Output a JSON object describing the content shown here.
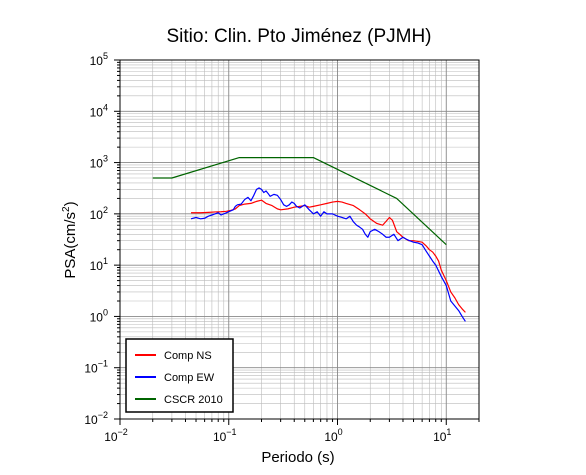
{
  "chart_data": {
    "type": "line",
    "title": "Sitio: Clin. Pto Jiménez (PJMH)",
    "xlabel": "Periodo (s)",
    "ylabel_prefix": "PSA(cm/s",
    "ylabel_sup": "2",
    "ylabel_suffix": ")",
    "x_scale": "log",
    "y_scale": "log",
    "xlim": [
      0.01,
      20
    ],
    "ylim": [
      0.01,
      100000
    ],
    "grid": true,
    "legend_position": "bottom-left",
    "x_ticks": [
      {
        "value": 0.01,
        "base": "10",
        "exp": "−2"
      },
      {
        "value": 0.1,
        "base": "10",
        "exp": "−1"
      },
      {
        "value": 1,
        "base": "10",
        "exp": "0"
      },
      {
        "value": 10,
        "base": "10",
        "exp": "1"
      }
    ],
    "y_ticks": [
      {
        "value": 0.01,
        "base": "10",
        "exp": "−2"
      },
      {
        "value": 0.1,
        "base": "10",
        "exp": "−1"
      },
      {
        "value": 1,
        "base": "10",
        "exp": "0"
      },
      {
        "value": 10,
        "base": "10",
        "exp": "1"
      },
      {
        "value": 100,
        "base": "10",
        "exp": "2"
      },
      {
        "value": 1000,
        "base": "10",
        "exp": "3"
      },
      {
        "value": 10000,
        "base": "10",
        "exp": "4"
      },
      {
        "value": 100000,
        "base": "10",
        "exp": "5"
      }
    ],
    "series": [
      {
        "name": "Comp NS",
        "color": "#ff0000",
        "points": [
          [
            0.045,
            105
          ],
          [
            0.055,
            105
          ],
          [
            0.065,
            107
          ],
          [
            0.075,
            109
          ],
          [
            0.085,
            110
          ],
          [
            0.095,
            112
          ],
          [
            0.105,
            117
          ],
          [
            0.115,
            125
          ],
          [
            0.125,
            145
          ],
          [
            0.14,
            155
          ],
          [
            0.16,
            160
          ],
          [
            0.18,
            175
          ],
          [
            0.2,
            185
          ],
          [
            0.22,
            160
          ],
          [
            0.25,
            145
          ],
          [
            0.28,
            125
          ],
          [
            0.3,
            120
          ],
          [
            0.35,
            125
          ],
          [
            0.4,
            135
          ],
          [
            0.45,
            140
          ],
          [
            0.5,
            145
          ],
          [
            0.55,
            135
          ],
          [
            0.6,
            140
          ],
          [
            0.7,
            150
          ],
          [
            0.8,
            160
          ],
          [
            0.9,
            170
          ],
          [
            1.0,
            175
          ],
          [
            1.1,
            170
          ],
          [
            1.2,
            160
          ],
          [
            1.4,
            145
          ],
          [
            1.6,
            120
          ],
          [
            1.8,
            100
          ],
          [
            2.0,
            80
          ],
          [
            2.3,
            65
          ],
          [
            2.6,
            60
          ],
          [
            3.0,
            85
          ],
          [
            3.2,
            75
          ],
          [
            3.5,
            45
          ],
          [
            4.0,
            35
          ],
          [
            4.5,
            30
          ],
          [
            5.0,
            30
          ],
          [
            5.5,
            29
          ],
          [
            6.0,
            28
          ],
          [
            6.5,
            24
          ],
          [
            7.0,
            20
          ],
          [
            7.5,
            18
          ],
          [
            8.0,
            15
          ],
          [
            8.5,
            12
          ],
          [
            9.0,
            8
          ],
          [
            10,
            5
          ],
          [
            11,
            3
          ],
          [
            12,
            2.3
          ],
          [
            13,
            1.7
          ],
          [
            14,
            1.4
          ],
          [
            15,
            1.2
          ]
        ]
      },
      {
        "name": "Comp EW",
        "color": "#0000ff",
        "points": [
          [
            0.045,
            80
          ],
          [
            0.05,
            85
          ],
          [
            0.055,
            80
          ],
          [
            0.06,
            82
          ],
          [
            0.065,
            90
          ],
          [
            0.07,
            95
          ],
          [
            0.075,
            100
          ],
          [
            0.08,
            105
          ],
          [
            0.085,
            95
          ],
          [
            0.09,
            100
          ],
          [
            0.095,
            105
          ],
          [
            0.1,
            110
          ],
          [
            0.11,
            120
          ],
          [
            0.115,
            140
          ],
          [
            0.12,
            150
          ],
          [
            0.13,
            155
          ],
          [
            0.14,
            190
          ],
          [
            0.15,
            210
          ],
          [
            0.16,
            180
          ],
          [
            0.17,
            230
          ],
          [
            0.18,
            300
          ],
          [
            0.19,
            320
          ],
          [
            0.2,
            300
          ],
          [
            0.21,
            260
          ],
          [
            0.22,
            280
          ],
          [
            0.23,
            250
          ],
          [
            0.24,
            220
          ],
          [
            0.26,
            240
          ],
          [
            0.28,
            230
          ],
          [
            0.3,
            190
          ],
          [
            0.32,
            150
          ],
          [
            0.34,
            140
          ],
          [
            0.36,
            150
          ],
          [
            0.38,
            170
          ],
          [
            0.4,
            160
          ],
          [
            0.42,
            140
          ],
          [
            0.45,
            130
          ],
          [
            0.5,
            150
          ],
          [
            0.55,
            120
          ],
          [
            0.6,
            100
          ],
          [
            0.65,
            110
          ],
          [
            0.7,
            90
          ],
          [
            0.75,
            110
          ],
          [
            0.8,
            100
          ],
          [
            0.9,
            100
          ],
          [
            1.0,
            90
          ],
          [
            1.1,
            85
          ],
          [
            1.2,
            80
          ],
          [
            1.3,
            90
          ],
          [
            1.4,
            70
          ],
          [
            1.5,
            60
          ],
          [
            1.6,
            55
          ],
          [
            1.7,
            50
          ],
          [
            1.8,
            40
          ],
          [
            1.9,
            35
          ],
          [
            2.0,
            45
          ],
          [
            2.2,
            50
          ],
          [
            2.4,
            45
          ],
          [
            2.6,
            40
          ],
          [
            2.8,
            35
          ],
          [
            3.0,
            35
          ],
          [
            3.3,
            40
          ],
          [
            3.6,
            30
          ],
          [
            4.0,
            35
          ],
          [
            4.3,
            32
          ],
          [
            4.6,
            30
          ],
          [
            5.0,
            28
          ],
          [
            5.5,
            27
          ],
          [
            6.0,
            25
          ],
          [
            6.5,
            19
          ],
          [
            7.0,
            15
          ],
          [
            7.5,
            12
          ],
          [
            8.0,
            10
          ],
          [
            9.0,
            6
          ],
          [
            10,
            4
          ],
          [
            11,
            2
          ],
          [
            12,
            1.6
          ],
          [
            13,
            1.3
          ],
          [
            14,
            1.0
          ],
          [
            15,
            0.8
          ]
        ]
      },
      {
        "name": "CSCR 2010",
        "color": "#006400",
        "points": [
          [
            0.02,
            500
          ],
          [
            0.03,
            500
          ],
          [
            0.125,
            1250
          ],
          [
            0.6,
            1250
          ],
          [
            3.5,
            200
          ],
          [
            10,
            25
          ]
        ]
      }
    ]
  }
}
